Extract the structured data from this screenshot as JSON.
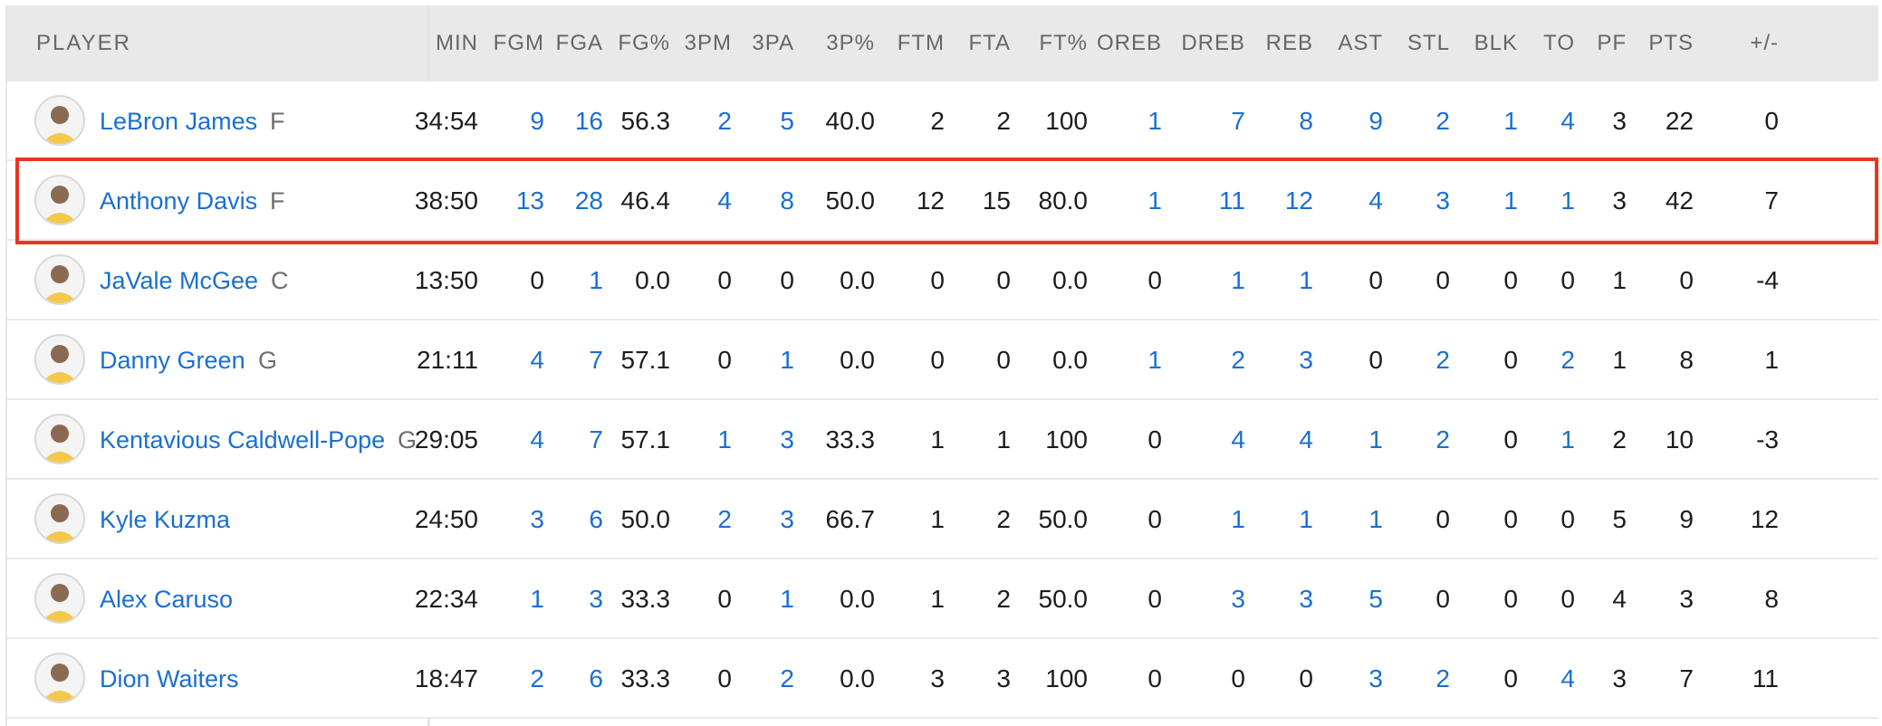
{
  "header": {
    "player": "PLAYER",
    "columns": [
      "MIN",
      "FGM",
      "FGA",
      "FG%",
      "3PM",
      "3PA",
      "3P%",
      "FTM",
      "FTA",
      "FT%",
      "OREB",
      "DREB",
      "REB",
      "AST",
      "STL",
      "BLK",
      "TO",
      "PF",
      "PTS",
      "+/-"
    ]
  },
  "rows": [
    {
      "name": "LeBron James",
      "pos": "F",
      "stats": [
        "34:54",
        "9",
        "16",
        "56.3",
        "2",
        "5",
        "40.0",
        "2",
        "2",
        "100",
        "1",
        "7",
        "8",
        "9",
        "2",
        "1",
        "4",
        "3",
        "22",
        "0"
      ]
    },
    {
      "name": "Anthony Davis",
      "pos": "F",
      "stats": [
        "38:50",
        "13",
        "28",
        "46.4",
        "4",
        "8",
        "50.0",
        "12",
        "15",
        "80.0",
        "1",
        "11",
        "12",
        "4",
        "3",
        "1",
        "1",
        "3",
        "42",
        "7"
      ]
    },
    {
      "name": "JaVale McGee",
      "pos": "C",
      "stats": [
        "13:50",
        "0",
        "1",
        "0.0",
        "0",
        "0",
        "0.0",
        "0",
        "0",
        "0.0",
        "0",
        "1",
        "1",
        "0",
        "0",
        "0",
        "0",
        "1",
        "0",
        "-4"
      ]
    },
    {
      "name": "Danny Green",
      "pos": "G",
      "stats": [
        "21:11",
        "4",
        "7",
        "57.1",
        "0",
        "1",
        "0.0",
        "0",
        "0",
        "0.0",
        "1",
        "2",
        "3",
        "0",
        "2",
        "0",
        "2",
        "1",
        "8",
        "1"
      ]
    },
    {
      "name": "Kentavious Caldwell-Pope",
      "pos": "G",
      "stats": [
        "29:05",
        "4",
        "7",
        "57.1",
        "1",
        "3",
        "33.3",
        "1",
        "1",
        "100",
        "0",
        "4",
        "4",
        "1",
        "2",
        "0",
        "1",
        "2",
        "10",
        "-3"
      ]
    },
    {
      "name": "Kyle Kuzma",
      "pos": "",
      "stats": [
        "24:50",
        "3",
        "6",
        "50.0",
        "2",
        "3",
        "66.7",
        "1",
        "2",
        "50.0",
        "0",
        "1",
        "1",
        "1",
        "0",
        "0",
        "0",
        "5",
        "9",
        "12"
      ]
    },
    {
      "name": "Alex Caruso",
      "pos": "",
      "stats": [
        "22:34",
        "1",
        "3",
        "33.3",
        "0",
        "1",
        "0.0",
        "1",
        "2",
        "50.0",
        "0",
        "3",
        "3",
        "5",
        "0",
        "0",
        "0",
        "4",
        "3",
        "8"
      ]
    },
    {
      "name": "Dion Waiters",
      "pos": "",
      "stats": [
        "18:47",
        "2",
        "6",
        "33.3",
        "0",
        "2",
        "0.0",
        "3",
        "3",
        "100",
        "0",
        "0",
        "0",
        "3",
        "2",
        "0",
        "4",
        "3",
        "7",
        "11"
      ]
    }
  ],
  "highlighted_row": 1,
  "colors": {
    "link": "#1a6fd1",
    "text": "#1c1c1c",
    "header_bg": "#e9e9e9",
    "highlight": "#e8361f"
  }
}
